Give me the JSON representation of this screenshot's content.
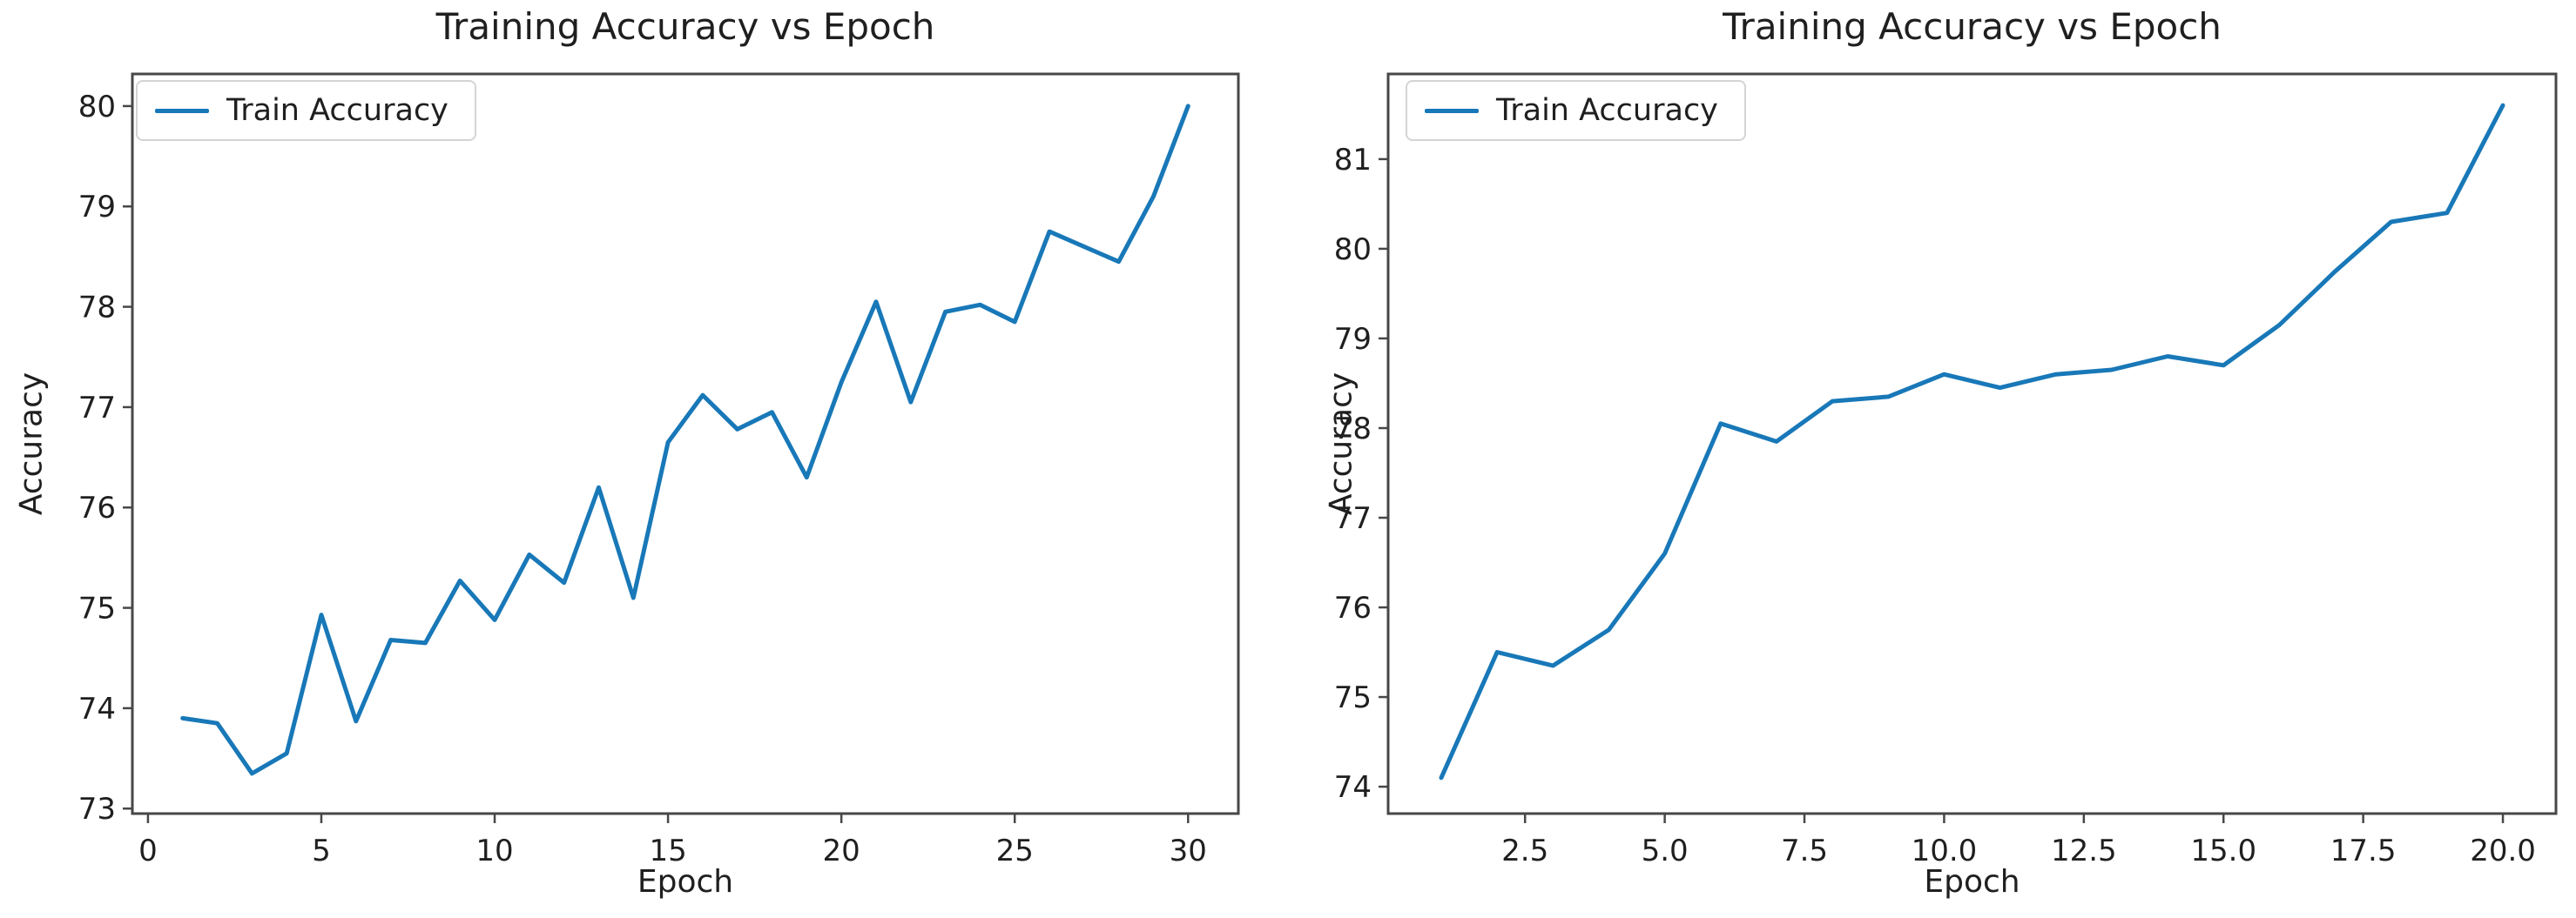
{
  "figure": {
    "background": "#ffffff"
  },
  "colors": {
    "line": "#1878b8",
    "spine": "#474747",
    "text": "#1f1f1f",
    "legend_border": "#d4d4d4"
  },
  "chart_data": [
    {
      "type": "line",
      "title": "Training Accuracy vs Epoch",
      "xlabel": "Epoch",
      "ylabel": "Accuracy",
      "grid": false,
      "legend_position": "upper left",
      "xlim": [
        -0.45,
        31.45
      ],
      "ylim": [
        72.95,
        80.32
      ],
      "xticks": [
        0,
        5,
        10,
        15,
        20,
        25,
        30
      ],
      "yticks": [
        73,
        74,
        75,
        76,
        77,
        78,
        79,
        80
      ],
      "xtick_decimals": 0,
      "series": [
        {
          "name": "Train Accuracy",
          "x": [
            1,
            2,
            3,
            4,
            5,
            6,
            7,
            8,
            9,
            10,
            11,
            12,
            13,
            14,
            15,
            16,
            17,
            18,
            19,
            20,
            21,
            22,
            23,
            24,
            25,
            26,
            27,
            28,
            29,
            30
          ],
          "y": [
            73.9,
            73.85,
            73.35,
            73.55,
            74.93,
            73.87,
            74.68,
            74.65,
            75.27,
            74.88,
            75.53,
            75.25,
            76.2,
            75.1,
            76.65,
            77.12,
            76.78,
            76.95,
            76.3,
            77.25,
            78.05,
            77.05,
            77.95,
            78.02,
            77.85,
            78.75,
            78.6,
            78.45,
            79.1,
            80.0
          ]
        }
      ]
    },
    {
      "type": "line",
      "title": "Training Accuracy vs Epoch",
      "xlabel": "Epoch",
      "ylabel": "Accuracy",
      "grid": false,
      "legend_position": "upper left",
      "xlim": [
        0.05,
        20.95
      ],
      "ylim": [
        73.7,
        81.95
      ],
      "xticks": [
        2.5,
        5.0,
        7.5,
        10.0,
        12.5,
        15.0,
        17.5,
        20.0
      ],
      "yticks": [
        74,
        75,
        76,
        77,
        78,
        79,
        80,
        81
      ],
      "xtick_decimals": 1,
      "series": [
        {
          "name": "Train Accuracy",
          "x": [
            1,
            2,
            3,
            4,
            5,
            6,
            7,
            8,
            9,
            10,
            11,
            12,
            13,
            14,
            15,
            16,
            17,
            18,
            19,
            20
          ],
          "y": [
            74.1,
            75.5,
            75.35,
            75.75,
            76.6,
            78.05,
            77.85,
            78.3,
            78.35,
            78.6,
            78.45,
            78.6,
            78.65,
            78.8,
            78.7,
            79.15,
            79.75,
            80.3,
            80.4,
            81.6
          ]
        }
      ]
    }
  ]
}
